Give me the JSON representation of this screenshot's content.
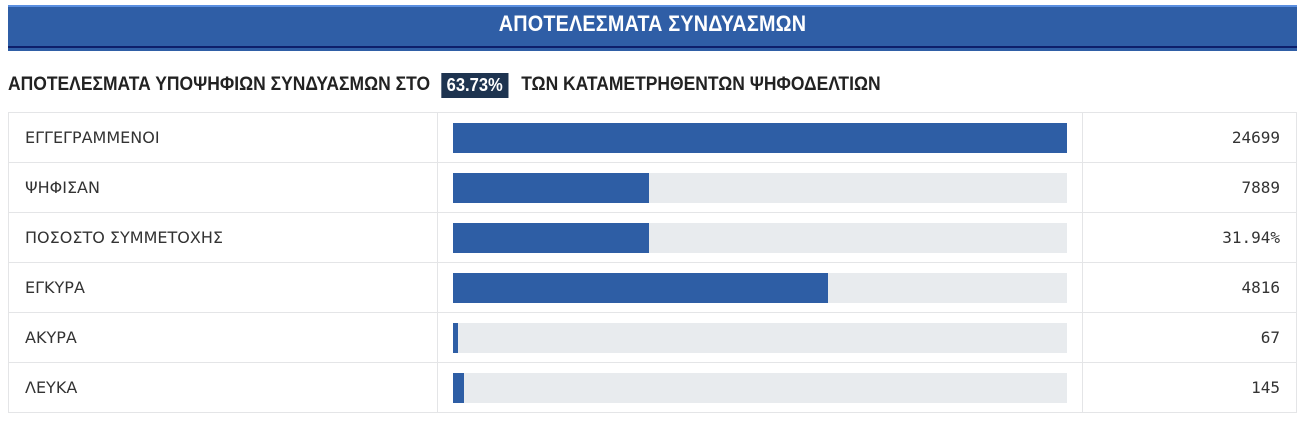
{
  "header": {
    "title": "ΑΠΟΤΕΛΕΣΜΑΤΑ ΣΥΝΔΥΑΣΜΩΝ",
    "band_color": "#2f5ea6"
  },
  "subtitle": {
    "prefix": "ΑΠΟΤΕΛΕΣΜΑΤΑ ΥΠΟΨΗΦΙΩΝ ΣΥΝΔΥΑΣΜΩΝ ΣΤΟ",
    "percentage": "63.73%",
    "suffix": "ΤΩΝ ΚΑΤΑΜΕΤΡΗΘΕΝΤΩΝ ΨΗΦΟΔΕΛΤΙΩΝ"
  },
  "colors": {
    "bar_fill": "#2e5ea5",
    "bar_track": "#e8ebee",
    "badge_bg": "#1e3450"
  },
  "rows": [
    {
      "label": "ΕΓΓΕΓΡΑΜΜΕΝΟΙ",
      "value": "24699",
      "bar_percent": 100
    },
    {
      "label": "ΨΗΦΙΣΑΝ",
      "value": "7889",
      "bar_percent": 31.94
    },
    {
      "label": "ΠΟΣΟΣΤΟ ΣΥΜΜΕΤΟΧΗΣ",
      "value": "31.94%",
      "bar_percent": 31.94
    },
    {
      "label": "ΕΓΚΥΡΑ",
      "value": "4816",
      "bar_percent": 61.05
    },
    {
      "label": "ΑΚΥΡΑ",
      "value": "67",
      "bar_percent": 0.85
    },
    {
      "label": "ΛΕΥΚΑ",
      "value": "145",
      "bar_percent": 1.84
    }
  ]
}
